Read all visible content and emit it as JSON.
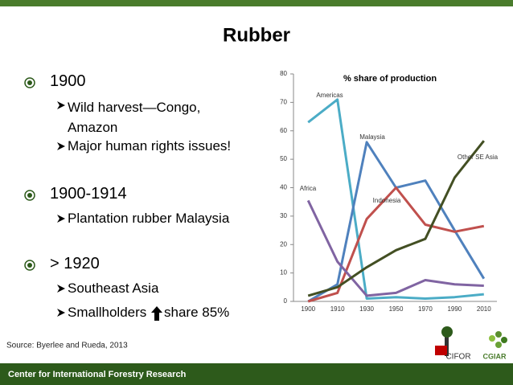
{
  "title": "Rubber",
  "bullets": [
    {
      "text": "1900",
      "sub": [
        "Wild harvest—Congo, Amazon",
        "Major human rights issues!"
      ]
    },
    {
      "text": "1900-1914",
      "sub": [
        "Plantation rubber Malaysia"
      ]
    },
    {
      "text": "> 1920",
      "sub": [
        "Southeast Asia",
        "Smallholders",
        "share 85%"
      ]
    }
  ],
  "source": "Source:  Byerlee and Rueda, 2013",
  "footer": "Center for International Forestry Research",
  "logos": [
    "CIFOR",
    "CGIAR"
  ],
  "chart_data": {
    "type": "line",
    "title": "% share of production",
    "categories": [
      "1900",
      "1910",
      "1930",
      "1950",
      "1970",
      "1990",
      "2010"
    ],
    "ylim": [
      0,
      80
    ],
    "yticks": [
      0,
      10,
      20,
      30,
      40,
      50,
      60,
      70,
      80
    ],
    "grid": false,
    "series": [
      {
        "name": "Americas",
        "color": "#4bacc6",
        "values": [
          63,
          71,
          1,
          1.5,
          1,
          1.5,
          2.5
        ]
      },
      {
        "name": "Malaysia",
        "color": "#4f81bd",
        "values": [
          0,
          6,
          56,
          40,
          42.5,
          25,
          8
        ]
      },
      {
        "name": "Indonesia",
        "color": "#c0504d",
        "values": [
          0,
          3,
          29,
          40,
          27,
          24.5,
          26.5
        ]
      },
      {
        "name": "Africa",
        "color": "#8064a2",
        "values": [
          35.5,
          14,
          2,
          3,
          7.5,
          6,
          5.5
        ]
      },
      {
        "name": "Other SE Asia",
        "color": "#434f23",
        "values": [
          2,
          5,
          12,
          18,
          22,
          43.5,
          56.5
        ]
      }
    ]
  }
}
